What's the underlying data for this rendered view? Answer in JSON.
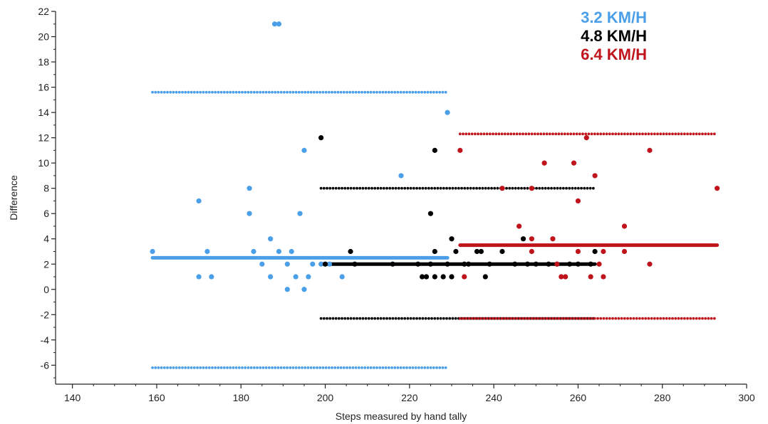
{
  "chart_data": {
    "type": "scatter",
    "xlabel": "Steps measured by hand tally",
    "ylabel": "Difference",
    "xlim": [
      136,
      300
    ],
    "ylim": [
      -7.5,
      22
    ],
    "x_ticks": [
      140,
      160,
      180,
      200,
      220,
      240,
      260,
      280,
      300
    ],
    "y_ticks": [
      22,
      20,
      18,
      16,
      14,
      12,
      10,
      8,
      6,
      4,
      2,
      0,
      -2,
      -4,
      -6
    ],
    "grid": false,
    "legend_position": "top-right",
    "series": [
      {
        "name": "3.2 KM/H",
        "color": "#4a9fe8",
        "points": [
          [
            159,
            3
          ],
          [
            170,
            7
          ],
          [
            170,
            1
          ],
          [
            172,
            3
          ],
          [
            173,
            1
          ],
          [
            182,
            8
          ],
          [
            182,
            6
          ],
          [
            183,
            3
          ],
          [
            185,
            2
          ],
          [
            187,
            4
          ],
          [
            187,
            1
          ],
          [
            188,
            21
          ],
          [
            189,
            21
          ],
          [
            189,
            3
          ],
          [
            191,
            2
          ],
          [
            191,
            0
          ],
          [
            192,
            3
          ],
          [
            193,
            1
          ],
          [
            194,
            6
          ],
          [
            195,
            11
          ],
          [
            195,
            0
          ],
          [
            196,
            1
          ],
          [
            197,
            2
          ],
          [
            199,
            2
          ],
          [
            201,
            2
          ],
          [
            204,
            1
          ],
          [
            218,
            9
          ],
          [
            229,
            14
          ]
        ],
        "mean_line": {
          "y": 2.5,
          "x": [
            159,
            229
          ]
        },
        "upper_loa": {
          "y": 15.6,
          "x": [
            159,
            229
          ]
        },
        "lower_loa": {
          "y": -6.2,
          "x": [
            159,
            229
          ]
        }
      },
      {
        "name": "4.8 KM/H",
        "color": "#000000",
        "points": [
          [
            199,
            12
          ],
          [
            200,
            2
          ],
          [
            206,
            3
          ],
          [
            207,
            2
          ],
          [
            216,
            2
          ],
          [
            222,
            2
          ],
          [
            223,
            1
          ],
          [
            224,
            1
          ],
          [
            225,
            6
          ],
          [
            225,
            2
          ],
          [
            226,
            11
          ],
          [
            226,
            3
          ],
          [
            226,
            1
          ],
          [
            228,
            1
          ],
          [
            229,
            2
          ],
          [
            230,
            4
          ],
          [
            230,
            1
          ],
          [
            231,
            3
          ],
          [
            233,
            2
          ],
          [
            234,
            2
          ],
          [
            236,
            3
          ],
          [
            237,
            3
          ],
          [
            238,
            1
          ],
          [
            239,
            2
          ],
          [
            242,
            3
          ],
          [
            245,
            2
          ],
          [
            247,
            4
          ],
          [
            248,
            2
          ],
          [
            250,
            2
          ],
          [
            253,
            2
          ],
          [
            255,
            2
          ],
          [
            258,
            2
          ],
          [
            260,
            2
          ],
          [
            263,
            2
          ],
          [
            264,
            3
          ]
        ],
        "mean_line": {
          "y": 2.0,
          "x": [
            199,
            264
          ]
        },
        "upper_loa": {
          "y": 8.0,
          "x": [
            199,
            264
          ]
        },
        "lower_loa": {
          "y": -2.3,
          "x": [
            199,
            264
          ]
        }
      },
      {
        "name": "6.4 KM/H",
        "color": "#c0141c",
        "points": [
          [
            232,
            11
          ],
          [
            233,
            1
          ],
          [
            242,
            8
          ],
          [
            246,
            5
          ],
          [
            249,
            8
          ],
          [
            249,
            4
          ],
          [
            249,
            3
          ],
          [
            252,
            10
          ],
          [
            254,
            4
          ],
          [
            255,
            2
          ],
          [
            256,
            1
          ],
          [
            257,
            1
          ],
          [
            259,
            10
          ],
          [
            260,
            7
          ],
          [
            260,
            3
          ],
          [
            262,
            12
          ],
          [
            263,
            1
          ],
          [
            264,
            9
          ],
          [
            265,
            2
          ],
          [
            266,
            3
          ],
          [
            266,
            1
          ],
          [
            271,
            5
          ],
          [
            271,
            3
          ],
          [
            277,
            11
          ],
          [
            277,
            2
          ],
          [
            293,
            8
          ]
        ],
        "mean_line": {
          "y": 3.5,
          "x": [
            232,
            293
          ]
        },
        "upper_loa": {
          "y": 12.3,
          "x": [
            232,
            293
          ]
        },
        "lower_loa": {
          "y": -2.3,
          "x": [
            232,
            293
          ]
        }
      }
    ]
  }
}
